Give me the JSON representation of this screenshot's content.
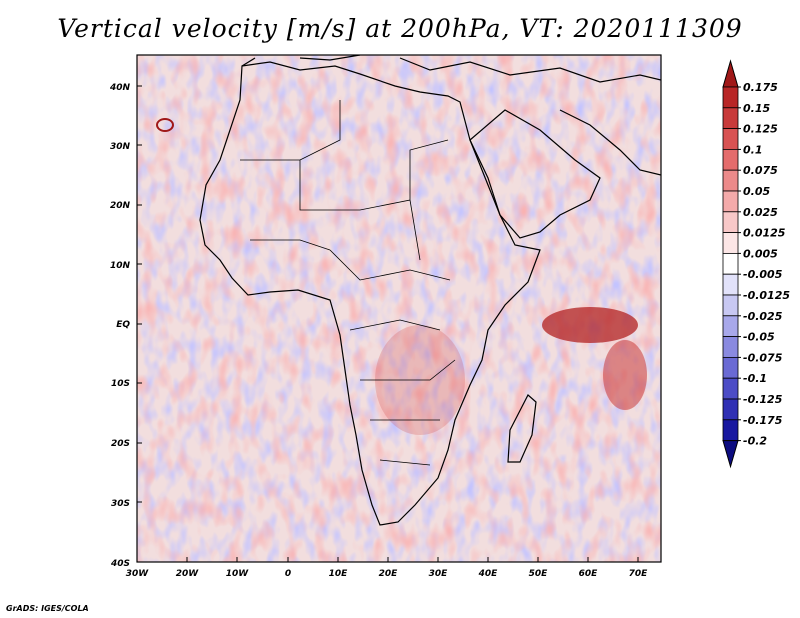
{
  "title": "Vertical velocity [m/s] at 200hPa, VT: 2020111309",
  "footer": "GrADS: IGES/COLA",
  "lat_labels": [
    "40N",
    "30N",
    "20N",
    "10N",
    "EQ",
    "10S",
    "20S",
    "30S",
    "40S"
  ],
  "lon_labels": [
    "30W",
    "20W",
    "10W",
    "0",
    "10E",
    "20E",
    "30E",
    "40E",
    "50E",
    "60E",
    "70E"
  ],
  "colorbar": {
    "labels": [
      "0.175",
      "0.15",
      "0.125",
      "0.1",
      "0.075",
      "0.05",
      "0.025",
      "0.0125",
      "0.005",
      "-0.005",
      "-0.0125",
      "-0.025",
      "-0.05",
      "-0.075",
      "-0.1",
      "-0.125",
      "-0.175",
      "-0.2"
    ],
    "colors": [
      "#a01818",
      "#b82626",
      "#c83a3a",
      "#d85252",
      "#e46c6c",
      "#ec8a8a",
      "#f4aaaa",
      "#f8c8c8",
      "#fce6e6",
      "#ffffff",
      "#e2e2fa",
      "#c8c8f2",
      "#a8a8ea",
      "#8a8ae0",
      "#6a6ad4",
      "#4c4cc6",
      "#3030b4",
      "#1818a0",
      "#0c0c80"
    ]
  }
}
